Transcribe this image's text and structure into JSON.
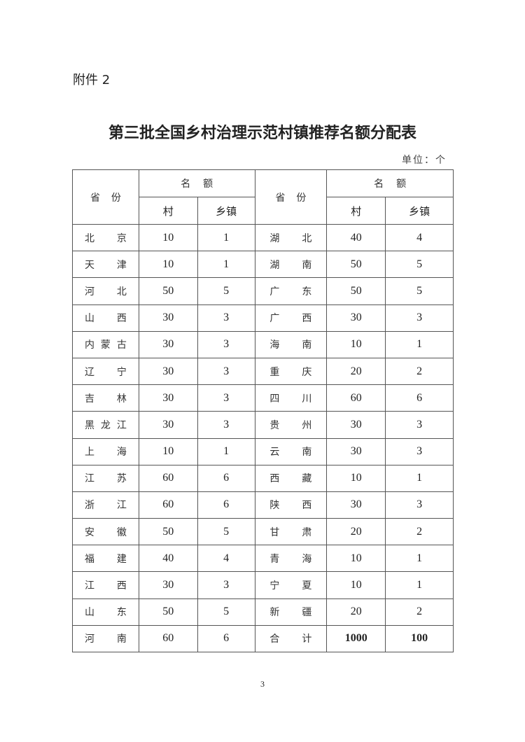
{
  "attachment_label": "附件 2",
  "title": "第三批全国乡村治理示范村镇推荐名额分配表",
  "unit": "单位：个",
  "headers": {
    "province": "省份",
    "quota": "名额",
    "village": "村",
    "township": "乡镇"
  },
  "left_rows": [
    {
      "province": "北京",
      "village": "10",
      "township": "1"
    },
    {
      "province": "天津",
      "village": "10",
      "township": "1"
    },
    {
      "province": "河北",
      "village": "50",
      "township": "5"
    },
    {
      "province": "山西",
      "village": "30",
      "township": "3"
    },
    {
      "province": "内蒙古",
      "village": "30",
      "township": "3"
    },
    {
      "province": "辽宁",
      "village": "30",
      "township": "3"
    },
    {
      "province": "吉林",
      "village": "30",
      "township": "3"
    },
    {
      "province": "黑龙江",
      "village": "30",
      "township": "3"
    },
    {
      "province": "上海",
      "village": "10",
      "township": "1"
    },
    {
      "province": "江苏",
      "village": "60",
      "township": "6"
    },
    {
      "province": "浙江",
      "village": "60",
      "township": "6"
    },
    {
      "province": "安徽",
      "village": "50",
      "township": "5"
    },
    {
      "province": "福建",
      "village": "40",
      "township": "4"
    },
    {
      "province": "江西",
      "village": "30",
      "township": "3"
    },
    {
      "province": "山东",
      "village": "50",
      "township": "5"
    },
    {
      "province": "河南",
      "village": "60",
      "township": "6"
    }
  ],
  "right_rows": [
    {
      "province": "湖北",
      "village": "40",
      "township": "4"
    },
    {
      "province": "湖南",
      "village": "50",
      "township": "5"
    },
    {
      "province": "广东",
      "village": "50",
      "township": "5"
    },
    {
      "province": "广西",
      "village": "30",
      "township": "3"
    },
    {
      "province": "海南",
      "village": "10",
      "township": "1"
    },
    {
      "province": "重庆",
      "village": "20",
      "township": "2"
    },
    {
      "province": "四川",
      "village": "60",
      "township": "6"
    },
    {
      "province": "贵州",
      "village": "30",
      "township": "3"
    },
    {
      "province": "云南",
      "village": "30",
      "township": "3"
    },
    {
      "province": "西藏",
      "village": "10",
      "township": "1"
    },
    {
      "province": "陕西",
      "village": "30",
      "township": "3"
    },
    {
      "province": "甘肃",
      "village": "20",
      "township": "2"
    },
    {
      "province": "青海",
      "village": "10",
      "township": "1"
    },
    {
      "province": "宁夏",
      "village": "10",
      "township": "1"
    },
    {
      "province": "新疆",
      "village": "20",
      "township": "2"
    },
    {
      "province": "合计",
      "village": "1000",
      "township": "100"
    }
  ],
  "page_number": "3"
}
